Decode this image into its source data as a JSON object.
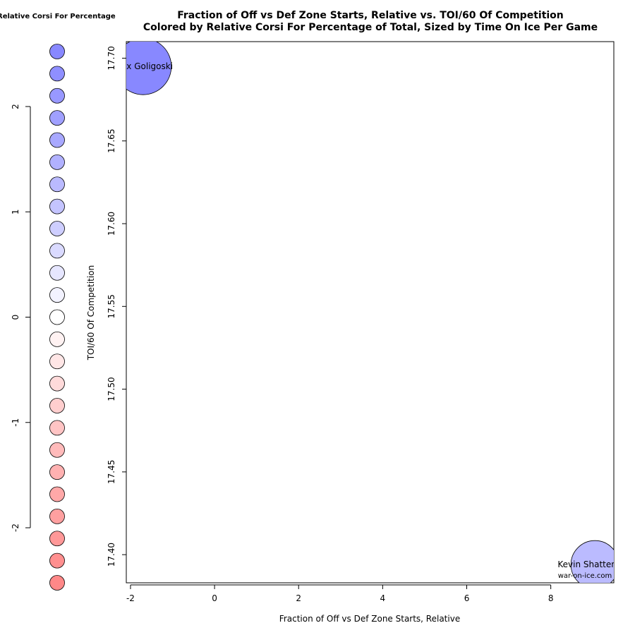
{
  "chart_data": {
    "type": "scatter",
    "title": "Fraction of Off vs Def Zone Starts, Relative vs. TOI/60 Of Competition",
    "subtitle": "Colored by Relative Corsi For Percentage of Total, Sized by Time On Ice Per Game",
    "xlabel": "Fraction of Off vs Def Zone Starts, Relative",
    "ylabel": "TOI/60 Of Competition",
    "xlim": [
      -2.1,
      9.5
    ],
    "ylim": [
      17.383,
      17.71
    ],
    "x_ticks": [
      "-2",
      "0",
      "2",
      "4",
      "6",
      "8"
    ],
    "y_ticks": [
      "17.40",
      "17.45",
      "17.50",
      "17.55",
      "17.60",
      "17.65",
      "17.70"
    ],
    "grid": false,
    "points": [
      {
        "label": "Alex Goligoski",
        "x": -1.7,
        "y": 17.695,
        "color": "#8888ff",
        "size": "large"
      },
      {
        "label": "Kevin Shattenkirk",
        "x": 9.05,
        "y": 17.394,
        "color": "#bbbbff",
        "size": "medium"
      }
    ],
    "watermark": "war-on-ice.com",
    "legend": {
      "title": "Relative Corsi For Percentage",
      "ticks": [
        "-2",
        "-1",
        "0",
        "1",
        "2"
      ],
      "range": [
        -2.5,
        2.5
      ],
      "colors": [
        "#8888ff",
        "#8f8fff",
        "#9898ff",
        "#a0a0ff",
        "#a8a8ff",
        "#b1b1ff",
        "#babaff",
        "#c4c4ff",
        "#ceceff",
        "#dadaff",
        "#e6e6ff",
        "#f2f2ff",
        "#ffffff",
        "#fff2f2",
        "#ffe6e6",
        "#ffdada",
        "#ffcece",
        "#ffc4c4",
        "#ffbaba",
        "#ffb1b1",
        "#ffa8a8",
        "#ffa0a0",
        "#ff9898",
        "#ff8f8f",
        "#ff8888"
      ]
    }
  }
}
